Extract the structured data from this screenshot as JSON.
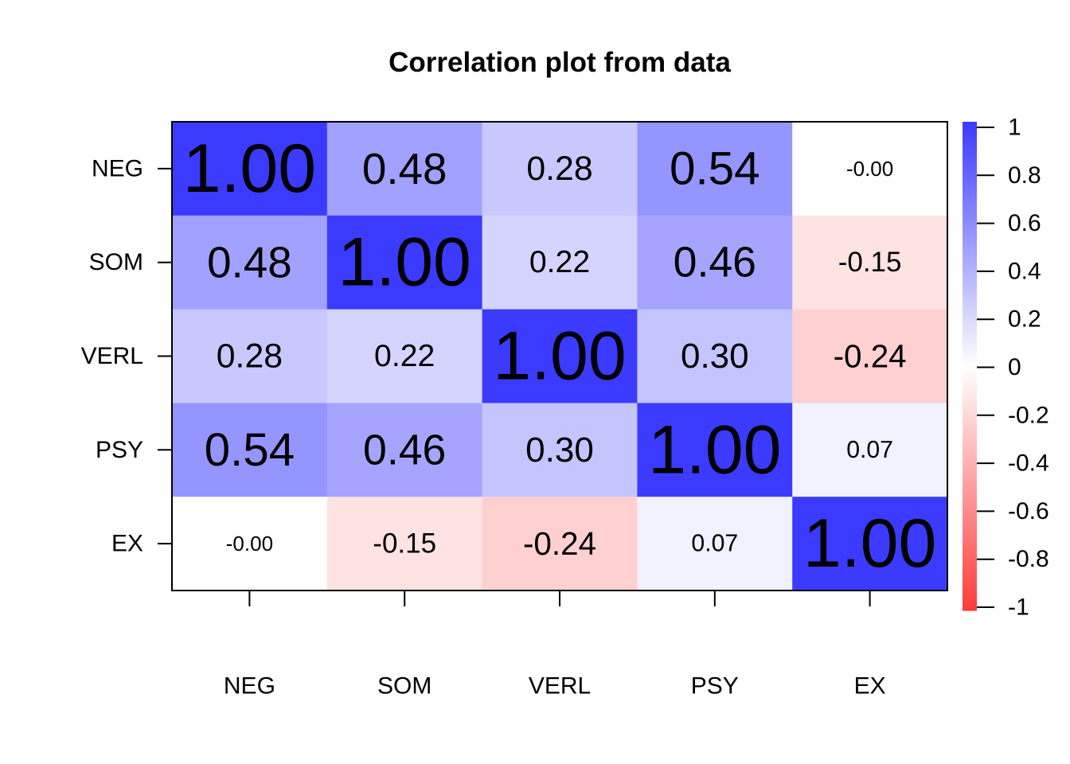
{
  "chart_data": {
    "type": "heatmap",
    "title": "Correlation plot from data",
    "rows": [
      "NEG",
      "SOM",
      "VERL",
      "PSY",
      "EX"
    ],
    "columns": [
      "NEG",
      "SOM",
      "VERL",
      "PSY",
      "EX"
    ],
    "values": [
      [
        1.0,
        0.48,
        0.28,
        0.54,
        -0.0
      ],
      [
        0.48,
        1.0,
        0.22,
        0.46,
        -0.15
      ],
      [
        0.28,
        0.22,
        1.0,
        0.3,
        -0.24
      ],
      [
        0.54,
        0.46,
        0.3,
        1.0,
        0.07
      ],
      [
        -0.0,
        -0.15,
        -0.24,
        0.07,
        1.0
      ]
    ],
    "cell_labels": [
      [
        "1.00",
        "0.48",
        "0.28",
        "0.54",
        "-0.00"
      ],
      [
        "0.48",
        "1.00",
        "0.22",
        "0.46",
        "-0.15"
      ],
      [
        "0.28",
        "0.22",
        "1.00",
        "0.30",
        "-0.24"
      ],
      [
        "0.54",
        "0.46",
        "0.30",
        "1.00",
        "0.07"
      ],
      [
        "-0.00",
        "-0.15",
        "-0.24",
        "0.07",
        "1.00"
      ]
    ],
    "color_scale": {
      "range": [
        -1,
        1
      ],
      "low_color": "#ff3b3b",
      "mid_color": "#ffffff",
      "high_color": "#3b3bff",
      "ticks": [
        "1",
        "0.8",
        "0.6",
        "0.4",
        "0.2",
        "0",
        "-0.2",
        "-0.4",
        "-0.6",
        "-0.8",
        "-1"
      ]
    },
    "label_size_scales_with_value": true
  }
}
